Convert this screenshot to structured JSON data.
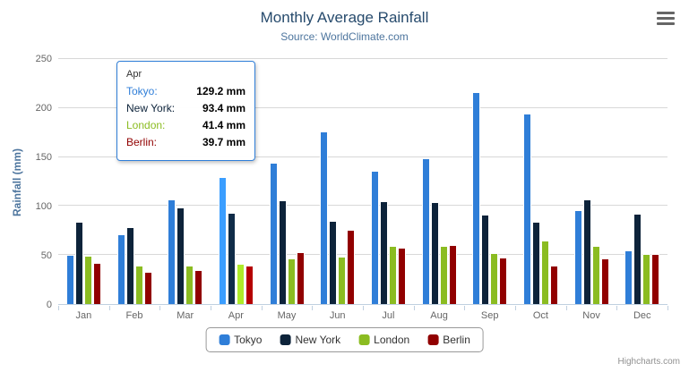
{
  "chart": {
    "title": "Monthly Average Rainfall",
    "subtitle": "Source: WorldClimate.com",
    "credits": "Highcharts.com"
  },
  "chart_data": {
    "type": "bar",
    "title": "Monthly Average Rainfall",
    "subtitle": "Source: WorldClimate.com",
    "xlabel": "",
    "ylabel": "Rainfall (mm)",
    "ylim": [
      0,
      250
    ],
    "y_ticks": [
      0,
      50,
      100,
      150,
      200,
      250
    ],
    "grid": true,
    "legend_position": "bottom",
    "hovered_category": "Apr",
    "categories": [
      "Jan",
      "Feb",
      "Mar",
      "Apr",
      "May",
      "Jun",
      "Jul",
      "Aug",
      "Sep",
      "Oct",
      "Nov",
      "Dec"
    ],
    "series": [
      {
        "name": "Tokyo",
        "color": "#2f7ed8",
        "values": [
          49.9,
          71.5,
          106.4,
          129.2,
          144.0,
          176.0,
          135.6,
          148.5,
          216.4,
          194.1,
          95.6,
          54.4
        ]
      },
      {
        "name": "New York",
        "color": "#0d233a",
        "values": [
          83.6,
          78.8,
          98.5,
          93.4,
          106.0,
          84.5,
          105.0,
          104.3,
          91.2,
          83.5,
          106.6,
          92.3
        ]
      },
      {
        "name": "London",
        "color": "#8bbc21",
        "values": [
          48.9,
          38.8,
          39.3,
          41.4,
          47.0,
          48.3,
          59.0,
          59.6,
          52.4,
          65.2,
          59.3,
          51.2
        ]
      },
      {
        "name": "Berlin",
        "color": "#910000",
        "values": [
          42.4,
          33.2,
          34.5,
          39.7,
          52.6,
          75.5,
          57.4,
          60.4,
          47.6,
          39.1,
          46.8,
          51.1
        ]
      }
    ]
  },
  "tooltip": {
    "header": "Apr",
    "rows": [
      {
        "label": "Tokyo:",
        "value": "129.2 mm",
        "color": "#2f7ed8"
      },
      {
        "label": "New York:",
        "value": "93.4 mm",
        "color": "#0d233a"
      },
      {
        "label": "London:",
        "value": "41.4 mm",
        "color": "#8bbc21"
      },
      {
        "label": "Berlin:",
        "value": "39.7 mm",
        "color": "#910000"
      }
    ]
  },
  "legend": {
    "items": [
      {
        "label": "Tokyo",
        "color": "#2f7ed8"
      },
      {
        "label": "New York",
        "color": "#0d233a"
      },
      {
        "label": "London",
        "color": "#8bbc21"
      },
      {
        "label": "Berlin",
        "color": "#910000"
      }
    ]
  },
  "icons": {
    "menu": "hamburger-icon"
  }
}
